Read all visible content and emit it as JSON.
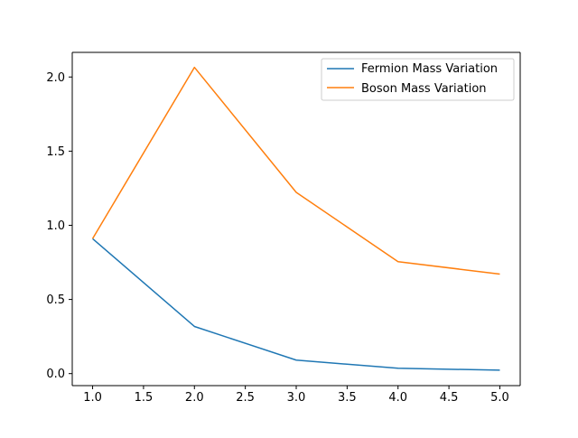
{
  "chart_data": {
    "type": "line",
    "x": [
      1.0,
      2.0,
      3.0,
      4.0,
      5.0
    ],
    "series": [
      {
        "name": "Fermion Mass Variation",
        "color": "#1f77b4",
        "values": [
          0.91,
          0.318,
          0.091,
          0.036,
          0.023
        ]
      },
      {
        "name": "Boson Mass Variation",
        "color": "#ff7f0e",
        "values": [
          0.91,
          2.065,
          1.222,
          0.755,
          0.671
        ]
      }
    ],
    "title": "",
    "xlabel": "",
    "ylabel": "",
    "xlim": [
      0.8,
      5.2
    ],
    "ylim": [
      -0.081,
      2.166
    ],
    "xticks": [
      "1.0",
      "1.5",
      "2.0",
      "2.5",
      "3.0",
      "3.5",
      "4.0",
      "4.5",
      "5.0"
    ],
    "yticks": [
      "0.0",
      "0.5",
      "1.0",
      "1.5",
      "2.0"
    ],
    "grid": false,
    "legend_position": "upper right"
  }
}
